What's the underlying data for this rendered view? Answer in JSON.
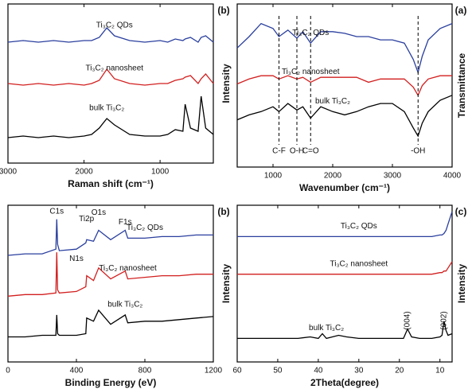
{
  "chart_data": [
    {
      "type": "line",
      "panel_label": "(a)",
      "xlabel": "Wavenumber (cm⁻¹)",
      "ylabel": "Transmittance",
      "x": [
        4000,
        3800,
        3600,
        3500,
        3430,
        3350,
        3200,
        3000,
        2800,
        2600,
        2400,
        2200,
        2000,
        1800,
        1630,
        1500,
        1400,
        1250,
        1100,
        1000,
        800,
        600,
        400
      ],
      "xlim": [
        4000,
        400
      ],
      "xticks": [
        1000,
        2000,
        3000,
        4000
      ],
      "ylim": [
        0,
        100
      ],
      "series": [
        {
          "name": "Ti₃C₂ QDs",
          "color": "#2a3f9e",
          "values": [
            88,
            85,
            78,
            68,
            58,
            66,
            76,
            78,
            78,
            80,
            80,
            82,
            83,
            83,
            76,
            83,
            79,
            84,
            80,
            85,
            88,
            80,
            73
          ]
        },
        {
          "name": "Ti₃C₂ nanosheet",
          "color": "#d21f1f",
          "values": [
            56,
            56,
            54,
            50,
            44,
            49,
            54,
            54,
            54,
            52,
            55,
            55,
            55,
            55,
            52,
            55,
            54,
            56,
            54,
            56,
            56,
            54,
            51
          ]
        },
        {
          "name": "bulk Ti₃C₂",
          "color": "#000000",
          "values": [
            44,
            41,
            34,
            27,
            19,
            24,
            34,
            39,
            39,
            37,
            34,
            32,
            34,
            37,
            30,
            37,
            35,
            39,
            34,
            37,
            34,
            32,
            29
          ]
        }
      ],
      "annotations": [
        {
          "x": 1100,
          "label": "C-F"
        },
        {
          "x": 1400,
          "label": "O-H"
        },
        {
          "x": 1630,
          "label": "C=O"
        },
        {
          "x": 3430,
          "label": "-OH"
        }
      ]
    },
    {
      "type": "line",
      "panel_label": "(b)",
      "xlabel": "Raman shift (cm⁻¹)",
      "ylabel": "Intensity",
      "x": [
        300,
        400,
        460,
        500,
        600,
        670,
        700,
        800,
        900,
        1000,
        1200,
        1400,
        1600,
        1700,
        1800,
        1900,
        2000,
        2200,
        2400,
        2600,
        2800,
        3000
      ],
      "xlim": [
        300,
        3000
      ],
      "xticks": [
        1000,
        2000,
        3000
      ],
      "ylim": [
        0,
        100
      ],
      "series": [
        {
          "name": "Ti₃C₂ QDs",
          "color": "#2a3f9e",
          "values": [
            76,
            80,
            79,
            76,
            79,
            78,
            77,
            78,
            76,
            77,
            76,
            77,
            80,
            85,
            79,
            77,
            77,
            76,
            77,
            76,
            77,
            76
          ]
        },
        {
          "name": "Ti₃C₂ nanosheet",
          "color": "#d21f1f",
          "values": [
            50,
            56,
            53,
            50,
            55,
            54,
            53,
            52,
            50,
            50,
            49,
            50,
            53,
            59,
            52,
            50,
            49,
            50,
            49,
            50,
            49,
            50
          ]
        },
        {
          "name": "bulk Ti₃C₂",
          "color": "#000000",
          "values": [
            18,
            22,
            42,
            20,
            22,
            37,
            20,
            21,
            18,
            17,
            17,
            18,
            24,
            28,
            22,
            18,
            17,
            16,
            17,
            16,
            17,
            16
          ]
        }
      ]
    },
    {
      "type": "line",
      "panel_label": "(b)",
      "xlabel": "Binding Energy (eV)",
      "ylabel": "Intensity",
      "x": [
        1200,
        1100,
        1000,
        900,
        800,
        700,
        685,
        600,
        530,
        500,
        460,
        455,
        400,
        300,
        290,
        285,
        280,
        200,
        100,
        0
      ],
      "xlim": [
        1200,
        0
      ],
      "xticks": [
        0,
        400,
        800,
        1200
      ],
      "ylim": [
        0,
        100
      ],
      "series": [
        {
          "name": "Ti₃C₂ QDs",
          "color": "#2a3f9e",
          "values": [
            81,
            81,
            80,
            80,
            79,
            79,
            84,
            78,
            84,
            77,
            78,
            76,
            72,
            71,
            75,
            91,
            72,
            69,
            69,
            68
          ]
        },
        {
          "name": "Ti₃C₂ nanosheet",
          "color": "#d21f1f",
          "values": [
            56,
            56,
            55,
            55,
            54,
            53,
            58,
            53,
            60,
            52,
            55,
            48,
            45,
            44,
            46,
            70,
            44,
            43,
            43,
            42
          ]
        },
        {
          "name": "bulk Ti₃C₂",
          "color": "#000000",
          "values": [
            29,
            28,
            27,
            26,
            26,
            25,
            30,
            24,
            33,
            26,
            28,
            18,
            17,
            17,
            18,
            30,
            17,
            17,
            16,
            16
          ]
        }
      ],
      "annotations": [
        {
          "x": 285,
          "label": "C1s"
        },
        {
          "x": 530,
          "label": "O1s"
        },
        {
          "x": 685,
          "label": "F1s"
        },
        {
          "x": 459,
          "label": "Ti2p"
        },
        {
          "x": 400,
          "label": "N1s"
        }
      ]
    },
    {
      "type": "line",
      "panel_label": "(c)",
      "xlabel": "2Theta(degree)",
      "ylabel": "Intensity",
      "x": [
        7,
        8,
        8.5,
        9,
        9.5,
        10,
        12,
        15,
        17,
        18,
        19,
        22,
        25,
        28,
        30,
        33,
        35,
        38,
        39,
        40,
        42,
        45,
        50,
        55,
        60
      ],
      "xlim": [
        7,
        60
      ],
      "xticks": [
        10,
        20,
        30,
        40,
        50,
        60
      ],
      "ylim": [
        0,
        100
      ],
      "series": [
        {
          "name": "Ti₃C₂ QDs",
          "color": "#2a3f9e",
          "values": [
            96,
            88,
            84,
            82,
            81,
            81,
            80,
            80,
            80,
            80,
            80,
            80,
            80,
            80,
            80,
            80,
            80,
            80,
            80,
            80,
            80,
            80,
            80,
            80,
            80
          ]
        },
        {
          "name": "Ti₃C₂ nanosheet",
          "color": "#d21f1f",
          "values": [
            64,
            60,
            58,
            58,
            57,
            57,
            56,
            56,
            56,
            56,
            56,
            56,
            56,
            56,
            56,
            56,
            56,
            56,
            56,
            56,
            56,
            56,
            56,
            56,
            56
          ]
        },
        {
          "name": "bulk Ti₃C₂",
          "color": "#000000",
          "values": [
            18,
            17,
            20,
            26,
            17,
            16,
            15,
            15,
            16,
            21,
            15,
            15,
            15,
            15,
            15,
            16,
            17,
            15,
            18,
            15,
            16,
            15,
            15,
            15,
            15
          ]
        }
      ],
      "annotations": [
        {
          "x": 9,
          "label": "(002)"
        },
        {
          "x": 18,
          "label": "(004)"
        }
      ]
    }
  ]
}
